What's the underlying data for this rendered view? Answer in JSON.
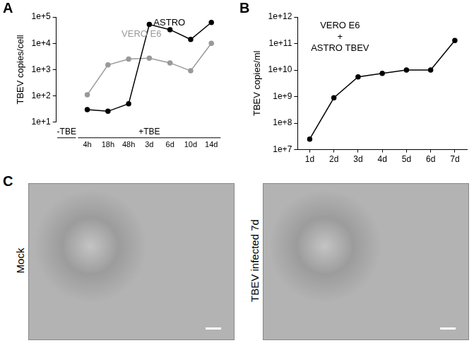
{
  "chart_data": [
    {
      "panel": "A",
      "type": "line",
      "categories": [
        null,
        "4h",
        "18h",
        "48h",
        "3d",
        "6d",
        "10d",
        "14d"
      ],
      "x_groups": [
        {
          "label": "-TBE",
          "from": 0,
          "to": 0
        },
        {
          "label": "+TBE",
          "from": 1,
          "to": 7
        }
      ],
      "series": [
        {
          "name": "ASTRO",
          "color": "#000000",
          "values": [
            null,
            30,
            26,
            50,
            52000,
            33000,
            14000,
            62000
          ]
        },
        {
          "name": "VERO E6",
          "color": "#999999",
          "values": [
            null,
            110,
            1500,
            2500,
            2700,
            1800,
            900,
            10000
          ]
        }
      ],
      "y_label": "TBEV copies/cell",
      "log": "y",
      "ylim": [
        10,
        100000
      ],
      "yticks": [
        {
          "value": 10,
          "label": "1e+1"
        },
        {
          "value": 100,
          "label": "1e+2"
        },
        {
          "value": 1000,
          "label": "1e+3"
        },
        {
          "value": 10000,
          "label": "1e+4"
        },
        {
          "value": 100000,
          "label": "1e+5"
        }
      ],
      "grid": false,
      "marker": "circle"
    },
    {
      "panel": "B",
      "type": "line",
      "categories": [
        "1d",
        "2d",
        "3d",
        "4d",
        "5d",
        "6d",
        "7d"
      ],
      "annotations": [
        "VERO E6",
        "+",
        "ASTRO TBEV"
      ],
      "values": [
        25000000,
        900000000,
        5500000000,
        7500000000,
        10000000000,
        10000000000,
        130000000000
      ],
      "color": "#000000",
      "y_label": "TBEV copies/ml",
      "log": "y",
      "ylim": [
        10000000,
        1000000000000
      ],
      "yticks": [
        {
          "value": 10000000,
          "label": "1e+7"
        },
        {
          "value": 100000000,
          "label": "1e+8"
        },
        {
          "value": 1000000000,
          "label": "1e+9"
        },
        {
          "value": 10000000000,
          "label": "1e+10"
        },
        {
          "value": 100000000000,
          "label": "1e+11"
        },
        {
          "value": 1000000000000,
          "label": "1e+12"
        }
      ],
      "grid": false,
      "marker": "circle"
    }
  ],
  "image_panel": {
    "panel": "C",
    "images": [
      {
        "label": "Mock"
      },
      {
        "label": "TBEV infected 7d"
      }
    ]
  }
}
